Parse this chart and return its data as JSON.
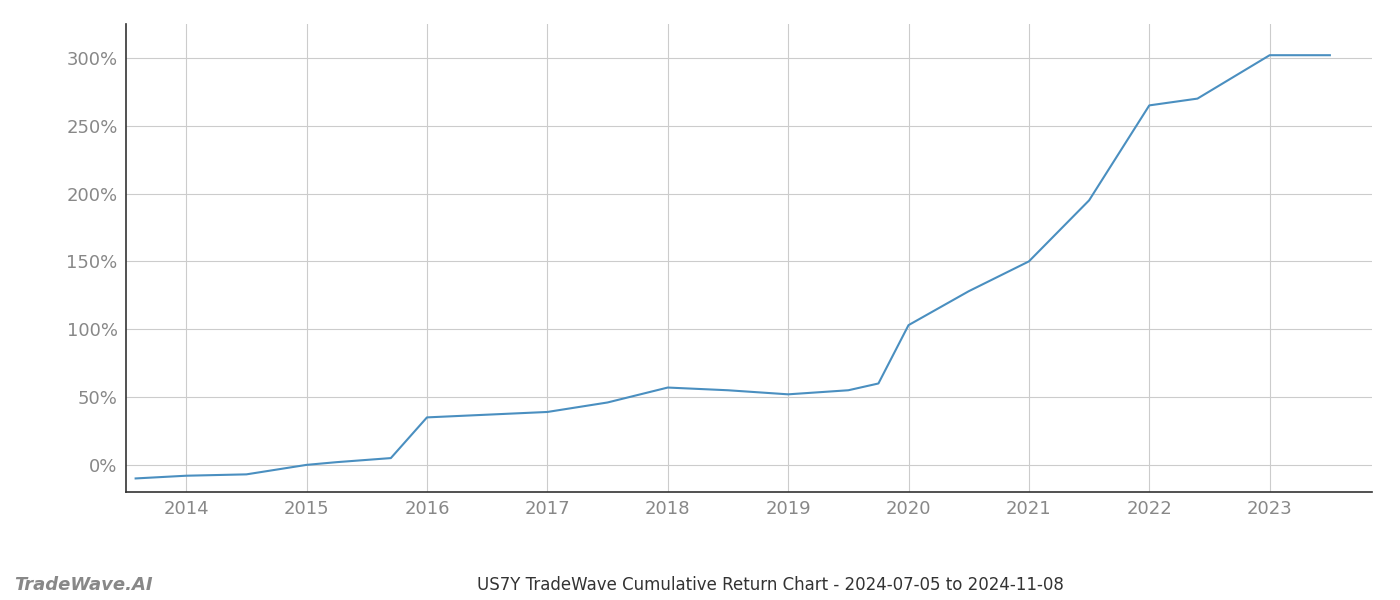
{
  "title": "US7Y TradeWave Cumulative Return Chart - 2024-07-05 to 2024-11-08",
  "watermark": "TradeWave.AI",
  "line_color": "#4a8fc0",
  "background_color": "#ffffff",
  "grid_color": "#cccccc",
  "x_years": [
    2013.58,
    2014.0,
    2014.5,
    2015.0,
    2015.25,
    2015.7,
    2016.0,
    2016.5,
    2017.0,
    2017.5,
    2018.0,
    2018.5,
    2019.0,
    2019.5,
    2019.75,
    2020.0,
    2020.5,
    2021.0,
    2021.5,
    2022.0,
    2022.4,
    2023.0,
    2023.5
  ],
  "y_values": [
    -10,
    -8,
    -7,
    0,
    2,
    5,
    35,
    37,
    39,
    46,
    57,
    55,
    52,
    55,
    60,
    103,
    128,
    150,
    195,
    265,
    270,
    302,
    302
  ],
  "xlim": [
    2013.5,
    2023.85
  ],
  "ylim": [
    -20,
    325
  ],
  "yticks": [
    0,
    50,
    100,
    150,
    200,
    250,
    300
  ],
  "ytick_labels": [
    "0%",
    "50%",
    "100%",
    "150%",
    "200%",
    "250%",
    "300%"
  ],
  "xticks": [
    2014,
    2015,
    2016,
    2017,
    2018,
    2019,
    2020,
    2021,
    2022,
    2023
  ],
  "xtick_labels": [
    "2014",
    "2015",
    "2016",
    "2017",
    "2018",
    "2019",
    "2020",
    "2021",
    "2022",
    "2023"
  ],
  "tick_color": "#888888",
  "spine_color": "#333333",
  "axis_label_fontsize": 13,
  "title_fontsize": 12,
  "watermark_fontsize": 13,
  "line_width": 1.5
}
